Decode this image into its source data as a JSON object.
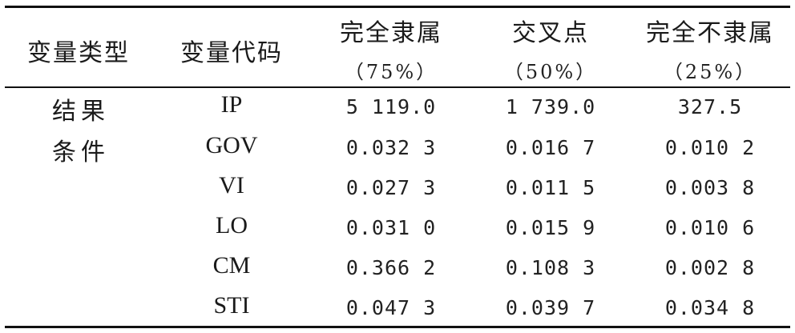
{
  "table": {
    "headers": {
      "var_type": "变量类型",
      "var_code": "变量代码",
      "full_membership": "完全隶属",
      "full_membership_pct": "（75%）",
      "crossover": "交叉点",
      "crossover_pct": "（50%）",
      "full_non_membership": "完全不隶属",
      "full_non_membership_pct": "（25%）"
    },
    "groups": [
      "结果",
      "条件"
    ],
    "rows": [
      {
        "code": "IP",
        "full": "5 119.0",
        "cross": "1 739.0",
        "non": "327.5"
      },
      {
        "code": "GOV",
        "full": "0.032 3",
        "cross": "0.016 7",
        "non": "0.010 2"
      },
      {
        "code": "VI",
        "full": "0.027 3",
        "cross": "0.011 5",
        "non": "0.003 8"
      },
      {
        "code": "LO",
        "full": "0.031 0",
        "cross": "0.015 9",
        "non": "0.010 6"
      },
      {
        "code": "CM",
        "full": "0.366 2",
        "cross": "0.108 3",
        "non": "0.002 8"
      },
      {
        "code": "STI",
        "full": "0.047 3",
        "cross": "0.039 7",
        "non": "0.034 8"
      }
    ]
  }
}
